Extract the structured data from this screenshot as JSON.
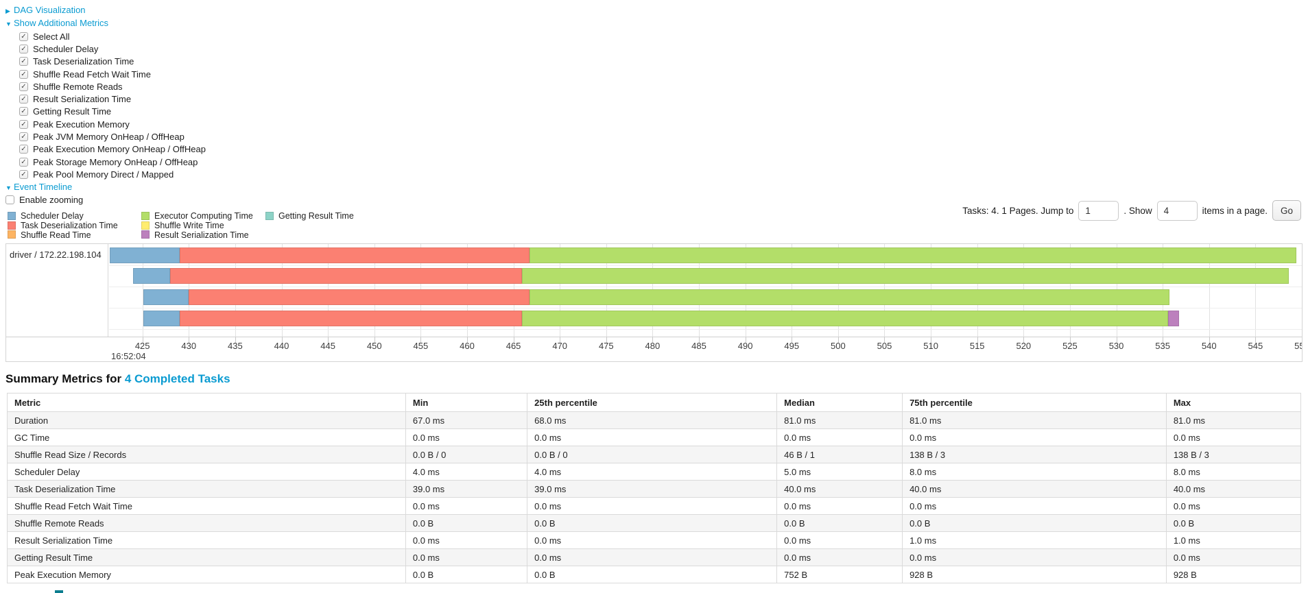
{
  "top_panel": {
    "dag_link": "DAG Visualization",
    "metrics_link": "Show Additional Metrics",
    "timeline_link": "Event Timeline",
    "enable_zooming_label": "Enable zooming",
    "metric_checkboxes": [
      "Select All",
      "Scheduler Delay",
      "Task Deserialization Time",
      "Shuffle Read Fetch Wait Time",
      "Shuffle Remote Reads",
      "Result Serialization Time",
      "Getting Result Time",
      "Peak Execution Memory",
      "Peak JVM Memory OnHeap / OffHeap",
      "Peak Execution Memory OnHeap / OffHeap",
      "Peak Storage Memory OnHeap / OffHeap",
      "Peak Pool Memory Direct / Mapped"
    ]
  },
  "legend": {
    "columns": [
      [
        {
          "label": "Scheduler Delay",
          "color": "#80B1D3"
        },
        {
          "label": "Task Deserialization Time",
          "color": "#FB8072"
        },
        {
          "label": "Shuffle Read Time",
          "color": "#FDB462"
        }
      ],
      [
        {
          "label": "Executor Computing Time",
          "color": "#B3DE69"
        },
        {
          "label": "Shuffle Write Time",
          "color": "#FFED6F"
        },
        {
          "label": "Result Serialization Time",
          "color": "#BC80BD"
        }
      ],
      [
        {
          "label": "Getting Result Time",
          "color": "#8DD3C7"
        }
      ]
    ]
  },
  "pagination": {
    "prefix": "Tasks: 4. 1 Pages. Jump to",
    "jump_value": "1",
    "mid": ". Show",
    "show_value": "4",
    "suffix": "items in a page.",
    "go_label": "Go"
  },
  "chart_data": {
    "type": "timeline",
    "row_label": "driver / 172.22.198.104",
    "axis_origin_label": "16:52:04",
    "axis": {
      "min": 421.4,
      "max": 550.0,
      "tick_start": 425,
      "tick_step": 5,
      "tick_count": 26,
      "unit": "ms after 16:52:04"
    },
    "colors": {
      "scheduler_delay": "#80B1D3",
      "task_deserialization": "#FB8072",
      "shuffle_read": "#FDB462",
      "executor_computing": "#B3DE69",
      "shuffle_write": "#FFED6F",
      "result_serialization": "#BC80BD",
      "getting_result": "#8DD3C7"
    },
    "tasks": [
      {
        "segments": [
          {
            "name": "scheduler_delay",
            "start": 421.5,
            "end": 429.0
          },
          {
            "name": "task_deserialization",
            "start": 429.0,
            "end": 466.7
          },
          {
            "name": "executor_computing",
            "start": 466.7,
            "end": 549.4
          }
        ]
      },
      {
        "segments": [
          {
            "name": "scheduler_delay",
            "start": 424.0,
            "end": 428.0
          },
          {
            "name": "task_deserialization",
            "start": 428.0,
            "end": 465.9
          },
          {
            "name": "executor_computing",
            "start": 465.9,
            "end": 548.6
          }
        ]
      },
      {
        "segments": [
          {
            "name": "scheduler_delay",
            "start": 425.1,
            "end": 430.0
          },
          {
            "name": "task_deserialization",
            "start": 430.0,
            "end": 466.7
          },
          {
            "name": "executor_computing",
            "start": 466.7,
            "end": 535.7
          }
        ]
      },
      {
        "segments": [
          {
            "name": "scheduler_delay",
            "start": 425.1,
            "end": 429.0
          },
          {
            "name": "task_deserialization",
            "start": 429.0,
            "end": 465.9
          },
          {
            "name": "executor_computing",
            "start": 465.9,
            "end": 535.6
          },
          {
            "name": "result_serialization",
            "start": 535.6,
            "end": 536.8
          }
        ]
      }
    ]
  },
  "summary": {
    "title_prefix": "Summary Metrics for ",
    "title_link": "4 Completed Tasks",
    "columns": [
      "Metric",
      "Min",
      "25th percentile",
      "Median",
      "75th percentile",
      "Max"
    ],
    "col_widths": [
      "30.8%",
      "9.4%",
      "19.3%",
      "9.7%",
      "20.4%",
      "10.4%"
    ],
    "rows": [
      {
        "metric": "Duration",
        "values": [
          "67.0 ms",
          "68.0 ms",
          "81.0 ms",
          "81.0 ms",
          "81.0 ms"
        ]
      },
      {
        "metric": "GC Time",
        "values": [
          "0.0 ms",
          "0.0 ms",
          "0.0 ms",
          "0.0 ms",
          "0.0 ms"
        ]
      },
      {
        "metric": "Shuffle Read Size / Records",
        "values": [
          "0.0 B / 0",
          "0.0 B / 0",
          "46 B / 1",
          "138 B / 3",
          "138 B / 3"
        ]
      },
      {
        "metric": "Scheduler Delay",
        "values": [
          "4.0 ms",
          "4.0 ms",
          "5.0 ms",
          "8.0 ms",
          "8.0 ms"
        ]
      },
      {
        "metric": "Task Deserialization Time",
        "values": [
          "39.0 ms",
          "39.0 ms",
          "40.0 ms",
          "40.0 ms",
          "40.0 ms"
        ]
      },
      {
        "metric": "Shuffle Read Fetch Wait Time",
        "values": [
          "0.0 ms",
          "0.0 ms",
          "0.0 ms",
          "0.0 ms",
          "0.0 ms"
        ]
      },
      {
        "metric": "Shuffle Remote Reads",
        "values": [
          "0.0 B",
          "0.0 B",
          "0.0 B",
          "0.0 B",
          "0.0 B"
        ]
      },
      {
        "metric": "Result Serialization Time",
        "values": [
          "0.0 ms",
          "0.0 ms",
          "0.0 ms",
          "1.0 ms",
          "1.0 ms"
        ]
      },
      {
        "metric": "Getting Result Time",
        "values": [
          "0.0 ms",
          "0.0 ms",
          "0.0 ms",
          "0.0 ms",
          "0.0 ms"
        ]
      },
      {
        "metric": "Peak Execution Memory",
        "values": [
          "0.0 B",
          "0.0 B",
          "752 B",
          "928 B",
          "928 B"
        ]
      }
    ]
  }
}
